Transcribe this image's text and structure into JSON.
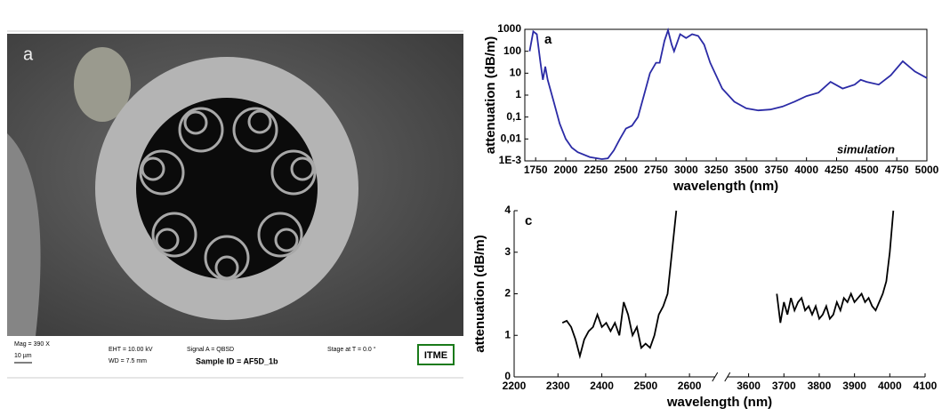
{
  "image": {
    "label": "a",
    "mag": "Mag =   390 X",
    "scale": "10 µm",
    "eht": "EHT = 10.00 kV",
    "wd": "WD = 7.5 mm",
    "signal": "Signal A = QBSD",
    "sample": "Sample ID = AF5D_1b",
    "stage": "Stage at T =  0.0 °",
    "logo": "ITME"
  },
  "chart_data": [
    {
      "type": "line",
      "panel_label": "a",
      "annotation": "simulation",
      "xlabel": "wavelength (nm)",
      "ylabel": "attenuation (dB/m)",
      "color": "#2b2ba6",
      "log_y": true,
      "x": [
        1700,
        1730,
        1760,
        1790,
        1810,
        1830,
        1850,
        1900,
        1950,
        2000,
        2050,
        2100,
        2200,
        2300,
        2350,
        2400,
        2450,
        2500,
        2550,
        2600,
        2650,
        2700,
        2750,
        2780,
        2820,
        2850,
        2880,
        2900,
        2950,
        3000,
        3050,
        3100,
        3150,
        3200,
        3300,
        3400,
        3500,
        3600,
        3700,
        3800,
        3900,
        4000,
        4100,
        4200,
        4300,
        4400,
        4450,
        4500,
        4600,
        4700,
        4800,
        4900,
        5000
      ],
      "values": [
        100,
        800,
        600,
        30,
        5,
        20,
        5,
        0.5,
        0.05,
        0.01,
        0.004,
        0.0025,
        0.0015,
        0.0012,
        0.0013,
        0.003,
        0.01,
        0.03,
        0.04,
        0.1,
        1,
        10,
        30,
        30,
        300,
        900,
        200,
        100,
        600,
        400,
        600,
        500,
        200,
        30,
        2,
        0.5,
        0.25,
        0.2,
        0.22,
        0.3,
        0.5,
        0.9,
        1.3,
        4,
        2,
        3,
        5,
        4,
        3,
        8,
        35,
        12,
        6
      ],
      "xlim": [
        1660,
        5000
      ],
      "xticks": [
        1750,
        2000,
        2250,
        2500,
        2750,
        3000,
        3250,
        3500,
        3750,
        4000,
        4250,
        4500,
        4750,
        5000
      ],
      "ylim": [
        0.001,
        1000
      ],
      "yticks": [
        {
          "value": 0.001,
          "label": "1E-3"
        },
        {
          "value": 0.01,
          "label": "0,01"
        },
        {
          "value": 0.1,
          "label": "0,1"
        },
        1,
        10,
        100,
        1000
      ]
    },
    {
      "type": "line",
      "panel_label": "c",
      "xlabel": "wavelength (nm)",
      "ylabel": "attenuation (dB/m)",
      "color": "#000000",
      "x": [
        2310,
        2320,
        2330,
        2340,
        2350,
        2360,
        2370,
        2380,
        2390,
        2400,
        2410,
        2420,
        2430,
        2440,
        2450,
        2460,
        2470,
        2480,
        2490,
        2500,
        2510,
        2520,
        2530,
        2540,
        2550,
        2560,
        2570,
        null,
        3680,
        3690,
        3700,
        3710,
        3720,
        3730,
        3740,
        3750,
        3760,
        3770,
        3780,
        3790,
        3800,
        3810,
        3820,
        3830,
        3840,
        3850,
        3860,
        3870,
        3880,
        3890,
        3900,
        3910,
        3920,
        3930,
        3940,
        3950,
        3960,
        3970,
        3980,
        3990,
        4000,
        4010
      ],
      "values": [
        1.3,
        1.35,
        1.2,
        0.9,
        0.5,
        0.9,
        1.1,
        1.2,
        1.5,
        1.2,
        1.3,
        1.1,
        1.3,
        1.0,
        1.8,
        1.5,
        1.0,
        1.2,
        0.7,
        0.8,
        0.7,
        1.0,
        1.5,
        1.7,
        2.0,
        3.0,
        4.0,
        null,
        2.0,
        1.3,
        1.8,
        1.5,
        1.9,
        1.6,
        1.8,
        1.9,
        1.6,
        1.7,
        1.5,
        1.7,
        1.4,
        1.5,
        1.7,
        1.4,
        1.5,
        1.8,
        1.6,
        1.9,
        1.8,
        2.0,
        1.8,
        1.9,
        2.0,
        1.8,
        1.9,
        1.7,
        1.6,
        1.8,
        2.0,
        2.3,
        3.0,
        4.0
      ],
      "xlim": [
        2200,
        4100
      ],
      "xbreak": [
        2650,
        3550
      ],
      "xticks": [
        2200,
        2300,
        2400,
        2500,
        2600,
        3600,
        3700,
        3800,
        3900,
        4000,
        4100
      ],
      "ylim": [
        0,
        4
      ],
      "yticks": [
        0,
        1,
        2,
        3,
        4
      ]
    }
  ]
}
